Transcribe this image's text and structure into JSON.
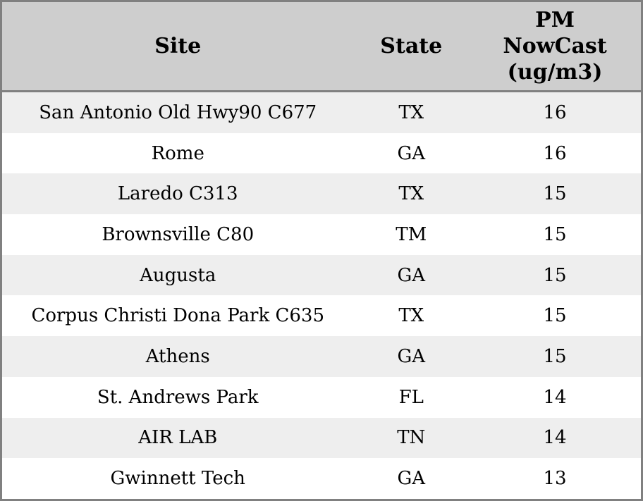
{
  "chart_data": {
    "type": "table",
    "title": "",
    "header_labels": {
      "site": "Site",
      "state": "State",
      "pm": "PM\nNowCast\n(ug/m3)"
    },
    "columns": [
      "Site",
      "State",
      "PM NowCast (ug/m3)"
    ],
    "rows": [
      {
        "site": "San Antonio Old Hwy90 C677",
        "state": "TX",
        "pm": "16"
      },
      {
        "site": "Rome",
        "state": "GA",
        "pm": "16"
      },
      {
        "site": "Laredo C313",
        "state": "TX",
        "pm": "15"
      },
      {
        "site": "Brownsville C80",
        "state": "TM",
        "pm": "15"
      },
      {
        "site": "Augusta",
        "state": "GA",
        "pm": "15"
      },
      {
        "site": "Corpus Christi Dona Park C635",
        "state": "TX",
        "pm": "15"
      },
      {
        "site": "Athens",
        "state": "GA",
        "pm": "15"
      },
      {
        "site": "St. Andrews Park",
        "state": "FL",
        "pm": "14"
      },
      {
        "site": "AIR LAB",
        "state": "TN",
        "pm": "14"
      },
      {
        "site": "Gwinnett Tech",
        "state": "GA",
        "pm": "13"
      }
    ],
    "layout": {
      "zebra_striping": true,
      "text_alignment": "center"
    }
  },
  "colors": {
    "header_bg": "#cecece",
    "border": "#808080",
    "row_alt_bg": "#eeeeee",
    "row_bg": "#ffffff",
    "text": "#000000"
  }
}
